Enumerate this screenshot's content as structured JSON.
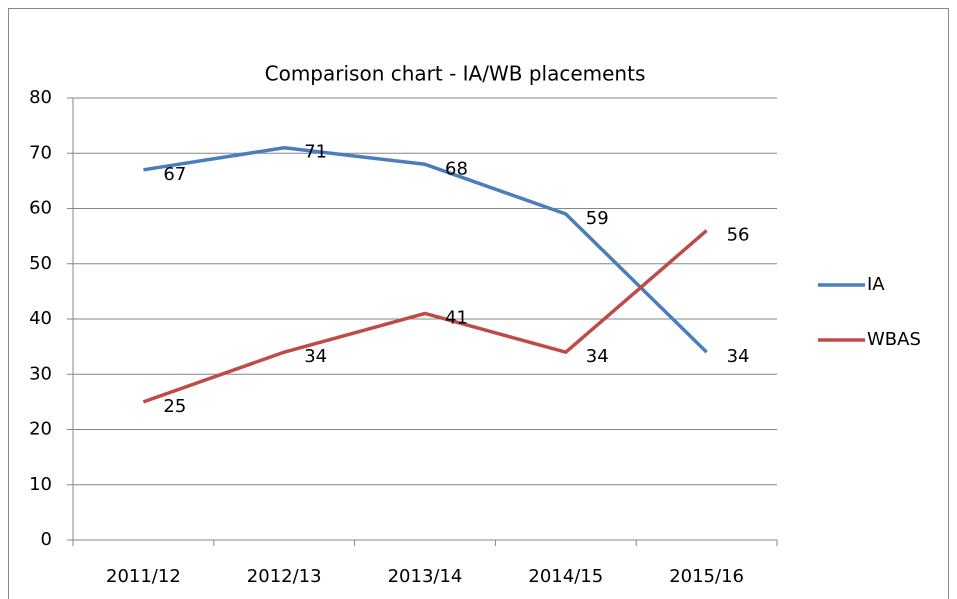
{
  "chart_data": {
    "type": "line",
    "title": "Comparison chart - IA/WB placements",
    "categories": [
      "2011/12",
      "2012/13",
      "2013/14",
      "2014/15",
      "2015/16"
    ],
    "series": [
      {
        "name": "IA",
        "color": "#4a7ebb",
        "values": [
          67,
          71,
          68,
          59,
          34
        ]
      },
      {
        "name": "WBAS",
        "color": "#be4b48",
        "values": [
          25,
          34,
          41,
          34,
          56
        ]
      }
    ],
    "ylim": [
      0,
      80
    ],
    "yticks": [
      0,
      10,
      20,
      30,
      40,
      50,
      60,
      70,
      80
    ],
    "grid": true,
    "legend": "right"
  }
}
